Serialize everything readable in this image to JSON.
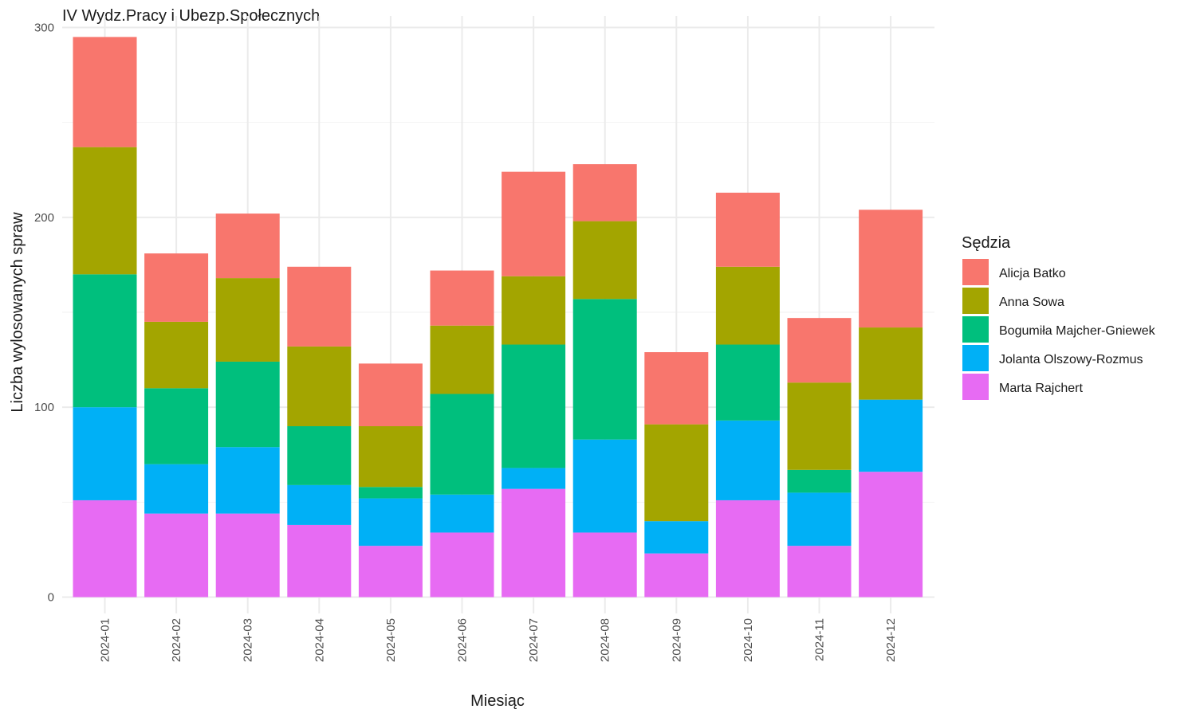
{
  "chart_data": {
    "type": "bar",
    "stacked": true,
    "title": "IV Wydz.Pracy i Ubezp.Społecznych",
    "xlabel": "Miesiąc",
    "ylabel": "Liczba wylosowanych spraw",
    "ylim": [
      0,
      300
    ],
    "yticks": [
      0,
      100,
      200,
      300
    ],
    "grid": true,
    "legend_position": "right",
    "legend_title": "Sędzia",
    "categories": [
      "2024-01",
      "2024-02",
      "2024-03",
      "2024-04",
      "2024-05",
      "2024-06",
      "2024-07",
      "2024-08",
      "2024-09",
      "2024-10",
      "2024-11",
      "2024-12"
    ],
    "series": [
      {
        "name": "Marta Rajchert",
        "color": "#E76BF3",
        "values": [
          51,
          44,
          44,
          38,
          27,
          34,
          57,
          34,
          23,
          51,
          27,
          66
        ]
      },
      {
        "name": "Jolanta Olszowy-Rozmus",
        "color": "#00B0F6",
        "values": [
          49,
          26,
          35,
          21,
          25,
          20,
          11,
          49,
          17,
          42,
          28,
          38
        ]
      },
      {
        "name": "Bogumiła Majcher-Gniewek",
        "color": "#00BF7D",
        "values": [
          70,
          40,
          45,
          31,
          6,
          53,
          65,
          74,
          0,
          40,
          12,
          0
        ]
      },
      {
        "name": "Anna Sowa",
        "color": "#A3A500",
        "values": [
          67,
          35,
          44,
          42,
          32,
          36,
          36,
          41,
          51,
          41,
          46,
          38
        ]
      },
      {
        "name": "Alicja Batko",
        "color": "#F8766D",
        "values": [
          58,
          36,
          34,
          42,
          33,
          29,
          55,
          30,
          38,
          39,
          34,
          62
        ]
      }
    ],
    "legend_order": [
      "Alicja Batko",
      "Anna Sowa",
      "Bogumiła Majcher-Gniewek",
      "Jolanta Olszowy-Rozmus",
      "Marta Rajchert"
    ]
  }
}
